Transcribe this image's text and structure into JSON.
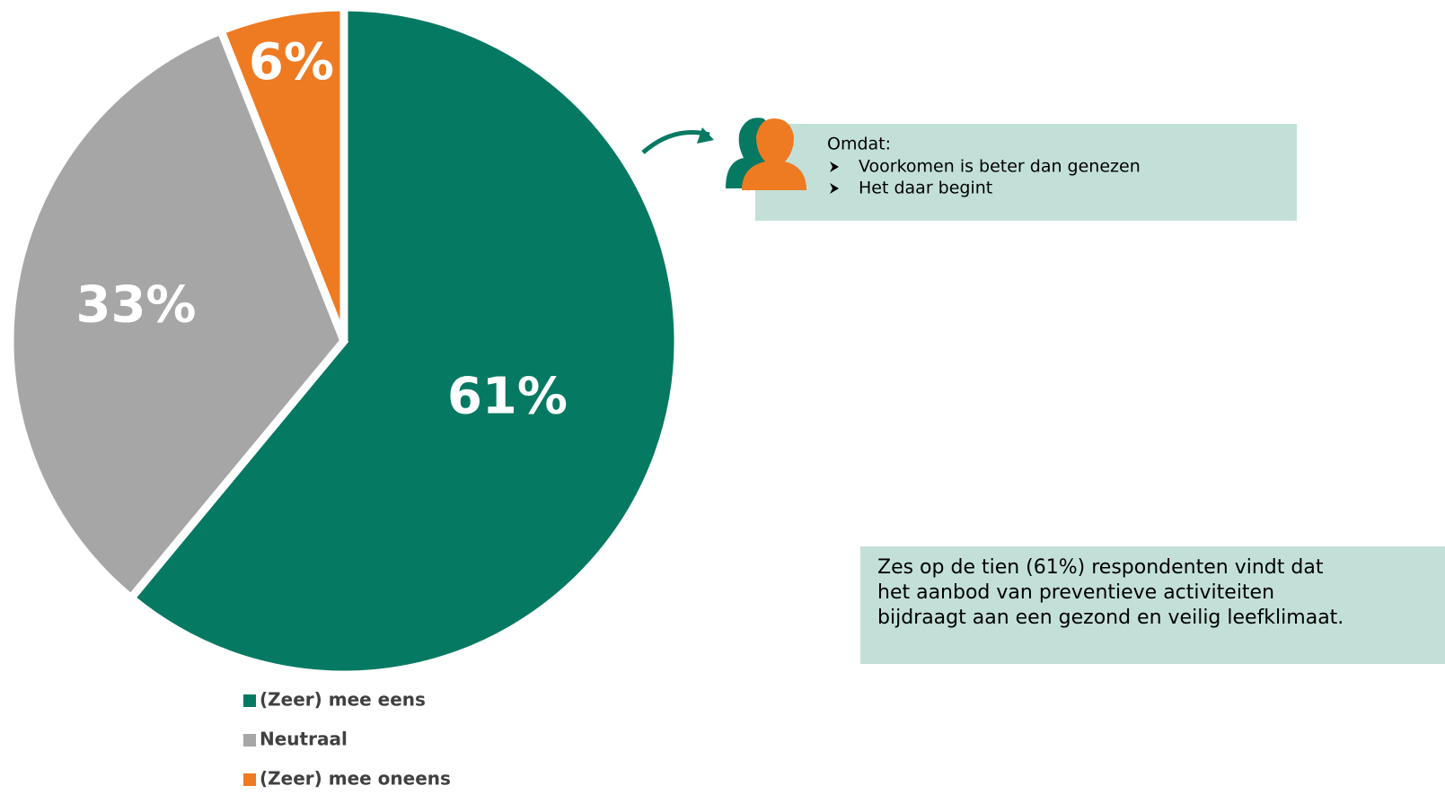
{
  "chart_data": {
    "type": "pie",
    "categories": [
      "(Zeer) mee eens",
      "Neutraal",
      "(Zeer) mee oneens"
    ],
    "values": [
      61,
      33,
      6
    ],
    "value_labels": [
      "61%",
      "33%",
      "6%"
    ],
    "colors": [
      "#067962",
      "#a6a6a6",
      "#ee7a22"
    ],
    "annotations": {
      "reason_title": "Omdat:",
      "reasons": [
        "Voorkomen is beter dan genezen",
        "Het daar begint"
      ],
      "summary": [
        "Zes op de tien (61%) respondenten vindt dat",
        "het aanbod van preventieve activiteiten",
        "bijdraagt aan een gezond en veilig leefklimaat."
      ]
    }
  }
}
